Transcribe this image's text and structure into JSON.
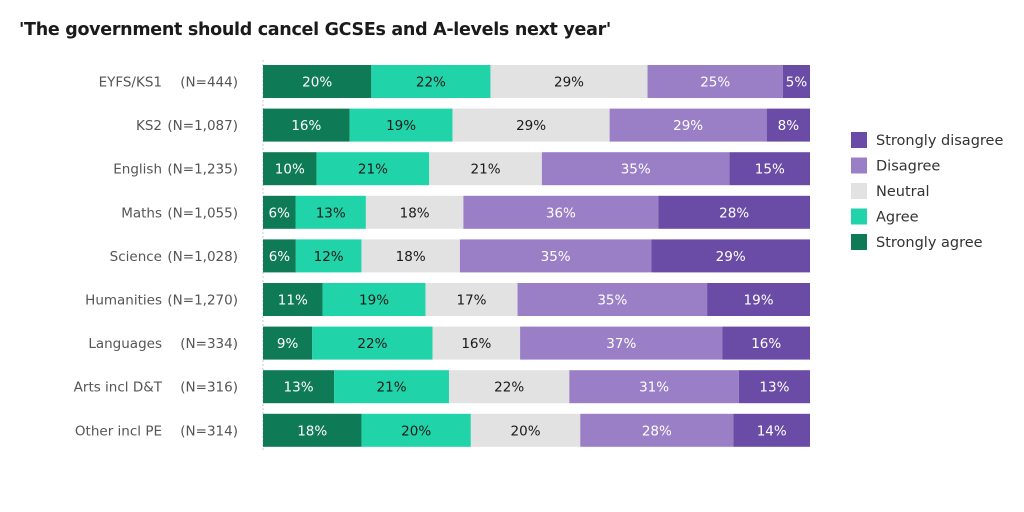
{
  "chart_data": {
    "type": "bar",
    "orientation": "horizontal",
    "stacked": true,
    "normalized_percent": true,
    "title": "'The government should cancel GCSEs and A-levels next year'",
    "xlabel": "",
    "ylabel": "",
    "xlim": [
      0,
      100
    ],
    "grid": false,
    "legend_position": "right",
    "categories": [
      {
        "label": "EYFS/KS1",
        "n": "(N=444)"
      },
      {
        "label": "KS2",
        "n": "(N=1,087)"
      },
      {
        "label": "English",
        "n": "(N=1,235)"
      },
      {
        "label": "Maths",
        "n": "(N=1,055)"
      },
      {
        "label": "Science",
        "n": "(N=1,028)"
      },
      {
        "label": "Humanities",
        "n": "(N=1,270)"
      },
      {
        "label": "Languages",
        "n": "(N=334)"
      },
      {
        "label": "Arts incl D&T",
        "n": "(N=316)"
      },
      {
        "label": "Other incl PE",
        "n": "(N=314)"
      }
    ],
    "series": [
      {
        "name": "Strongly agree",
        "color": "#0f7a56",
        "text_color": "#ffffff",
        "values": [
          20,
          16,
          10,
          6,
          6,
          11,
          9,
          13,
          18
        ]
      },
      {
        "name": "Agree",
        "color": "#20d3a8",
        "text_color": "#1a1a1a",
        "values": [
          22,
          19,
          21,
          13,
          12,
          19,
          22,
          21,
          20
        ]
      },
      {
        "name": "Neutral",
        "color": "#e2e2e2",
        "text_color": "#1a1a1a",
        "values": [
          29,
          29,
          21,
          18,
          18,
          17,
          16,
          22,
          20
        ]
      },
      {
        "name": "Disagree",
        "color": "#9a7fc6",
        "text_color": "#ffffff",
        "values": [
          25,
          29,
          35,
          36,
          35,
          35,
          37,
          31,
          28
        ]
      },
      {
        "name": "Strongly disagree",
        "color": "#6a4ca6",
        "text_color": "#ffffff",
        "values": [
          5,
          8,
          15,
          28,
          29,
          19,
          16,
          13,
          14
        ]
      }
    ],
    "legend_order": [
      "Strongly disagree",
      "Disagree",
      "Neutral",
      "Agree",
      "Strongly agree"
    ],
    "value_suffix": "%"
  }
}
